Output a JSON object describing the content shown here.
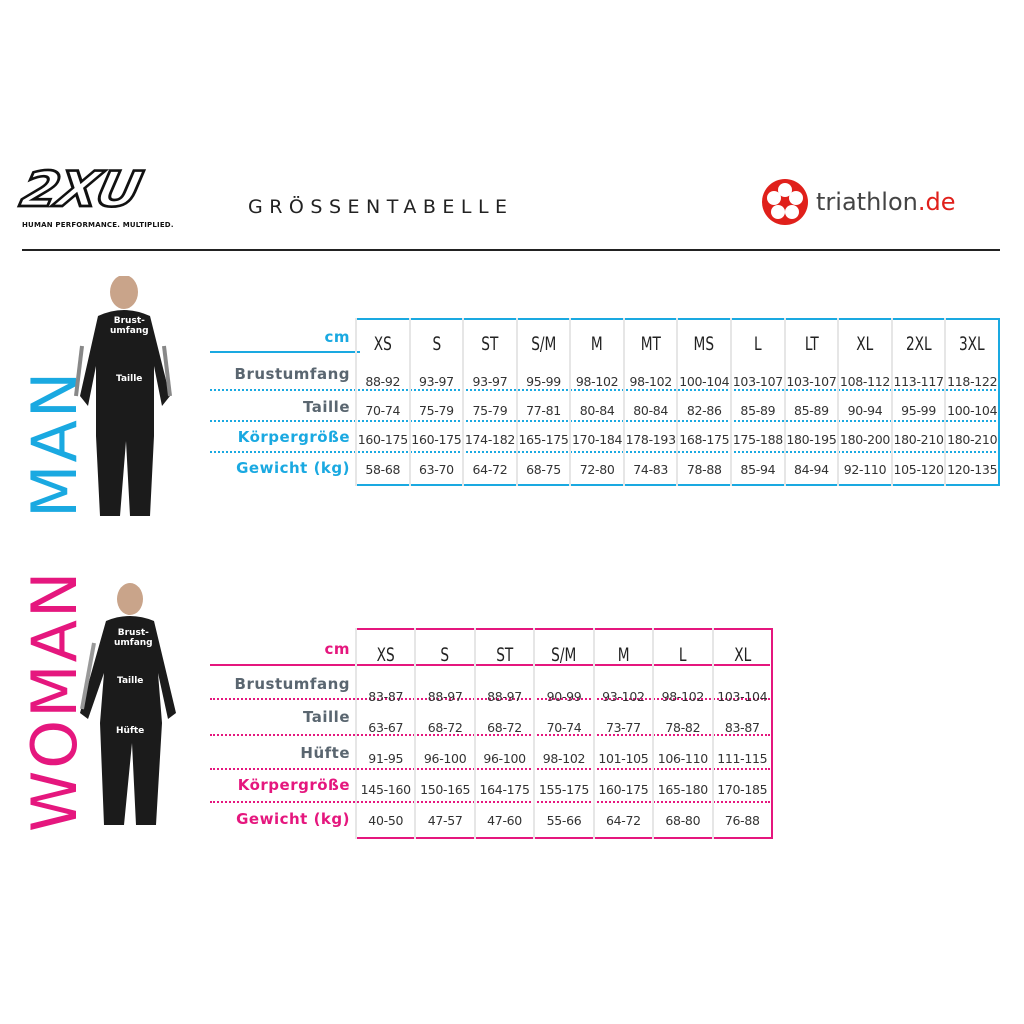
{
  "header": {
    "brand": "2XU",
    "brand_tagline": "HUMAN PERFORMANCE. MULTIPLIED.",
    "title": "GRÖSSENTABELLE",
    "partner_name": "triathlon",
    "partner_tld": ".de"
  },
  "colors": {
    "man": "#1aa9e1",
    "woman": "#e5177e",
    "gray_label": "#5a6670",
    "partner_red": "#e0201b"
  },
  "man": {
    "section_label": "MAN",
    "unit": "cm",
    "callouts": [
      "Brust-\numfang",
      "Taille"
    ],
    "sizes": [
      "XS",
      "S",
      "ST",
      "S/M",
      "M",
      "MT",
      "MS",
      "L",
      "LT",
      "XL",
      "2XL",
      "3XL"
    ],
    "rows": [
      {
        "label": "Brustumfang",
        "values": [
          "88-92",
          "93-97",
          "93-97",
          "95-99",
          "98-102",
          "98-102",
          "100-104",
          "103-107",
          "103-107",
          "108-112",
          "113-117",
          "118-122"
        ]
      },
      {
        "label": "Taille",
        "values": [
          "70-74",
          "75-79",
          "75-79",
          "77-81",
          "80-84",
          "80-84",
          "82-86",
          "85-89",
          "85-89",
          "90-94",
          "95-99",
          "100-104"
        ]
      },
      {
        "label": "Körpergröße",
        "values": [
          "160-175",
          "160-175",
          "174-182",
          "165-175",
          "170-184",
          "178-193",
          "168-175",
          "175-188",
          "180-195",
          "180-200",
          "180-210",
          "180-210"
        ]
      },
      {
        "label": "Gewicht (kg)",
        "values": [
          "58-68",
          "63-70",
          "64-72",
          "68-75",
          "72-80",
          "74-83",
          "78-88",
          "85-94",
          "84-94",
          "92-110",
          "105-120",
          "120-135"
        ]
      }
    ]
  },
  "woman": {
    "section_label": "WOMAN",
    "unit": "cm",
    "callouts": [
      "Brust-\numfang",
      "Taille",
      "Hüfte"
    ],
    "sizes": [
      "XS",
      "S",
      "ST",
      "S/M",
      "M",
      "L",
      "XL"
    ],
    "rows": [
      {
        "label": "Brustumfang",
        "values": [
          "83-87",
          "88-97",
          "88-97",
          "90-99",
          "93-102",
          "98-102",
          "103-104"
        ]
      },
      {
        "label": "Taille",
        "values": [
          "63-67",
          "68-72",
          "68-72",
          "70-74",
          "73-77",
          "78-82",
          "83-87"
        ]
      },
      {
        "label": "Hüfte",
        "values": [
          "91-95",
          "96-100",
          "96-100",
          "98-102",
          "101-105",
          "106-110",
          "111-115"
        ]
      },
      {
        "label": "Körpergröße",
        "values": [
          "145-160",
          "150-165",
          "164-175",
          "155-175",
          "160-175",
          "165-180",
          "170-185"
        ]
      },
      {
        "label": "Gewicht (kg)",
        "values": [
          "40-50",
          "47-57",
          "47-60",
          "55-66",
          "64-72",
          "68-80",
          "76-88"
        ]
      }
    ]
  }
}
